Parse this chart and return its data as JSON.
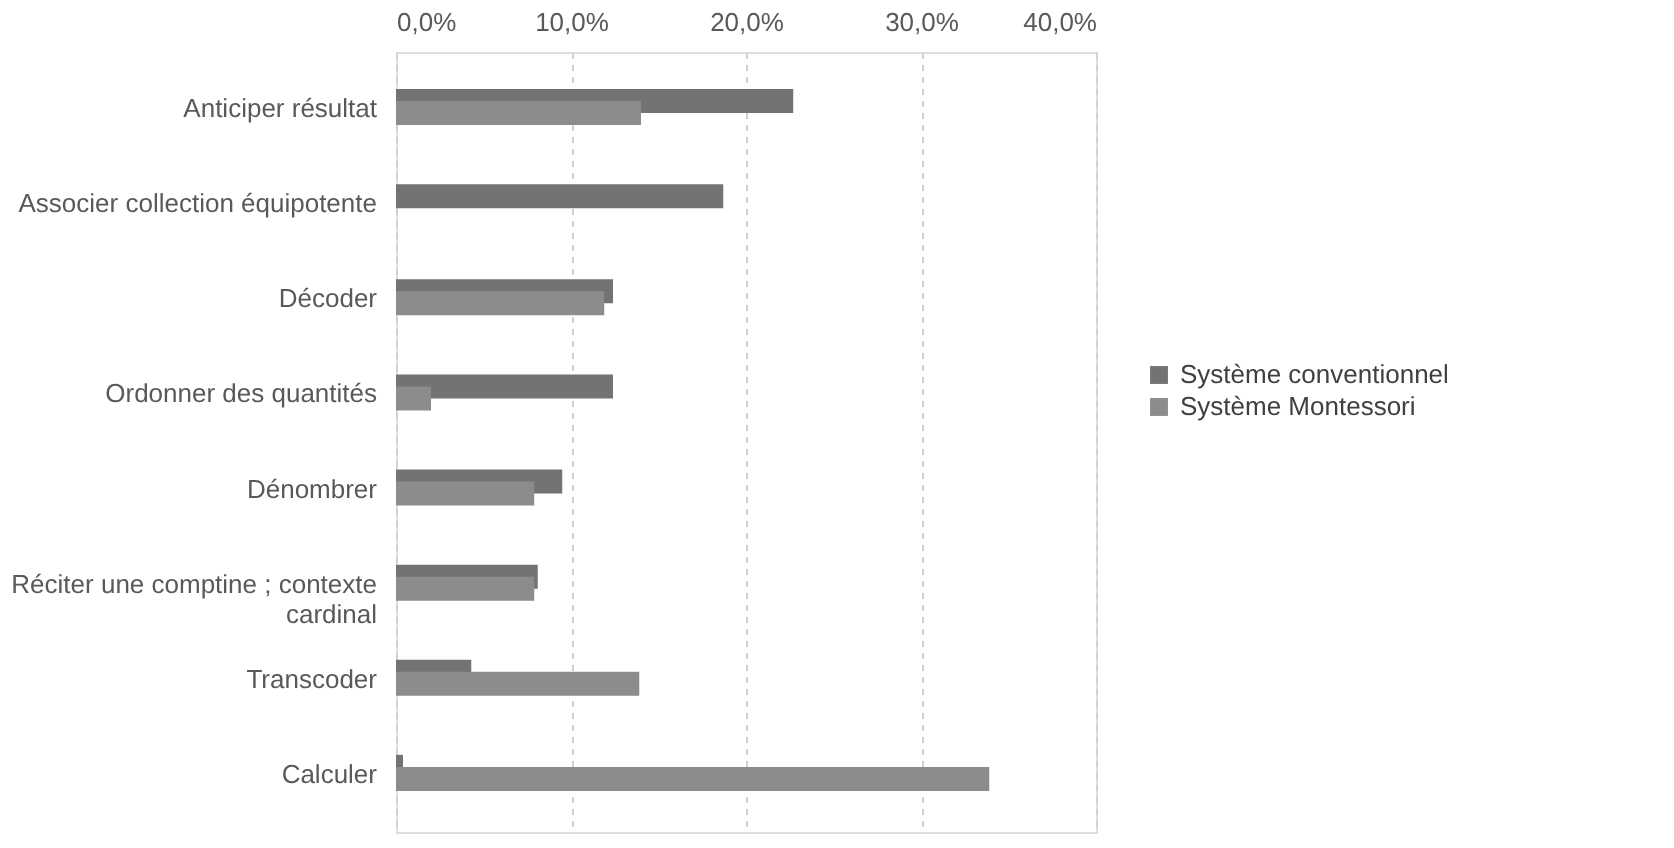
{
  "chart_data": {
    "type": "bar",
    "orientation": "horizontal",
    "categories": [
      "Anticiper résultat",
      "Associer collection équipotente",
      "Décoder",
      "Ordonner des quantités",
      "Dénombrer",
      "Réciter une comptine ; contexte cardinal",
      "Transcoder",
      "Calculer"
    ],
    "series": [
      {
        "name": "Système conventionnel",
        "color": "#737373",
        "values": [
          22.7,
          18.7,
          12.4,
          12.4,
          9.5,
          8.1,
          4.3,
          0.4
        ]
      },
      {
        "name": "Système Montessori",
        "color": "#8c8c8c",
        "values": [
          14.0,
          null,
          11.9,
          2.0,
          7.9,
          7.9,
          13.9,
          33.9
        ]
      }
    ],
    "xlim": [
      0,
      40
    ],
    "xticks": [
      {
        "value": 0,
        "label": "0,0%"
      },
      {
        "value": 10,
        "label": "10,0%"
      },
      {
        "value": 20,
        "label": "20,0%"
      },
      {
        "value": 30,
        "label": "30,0%"
      },
      {
        "value": 40,
        "label": "40,0%"
      }
    ],
    "grid": "x",
    "legend": "right"
  }
}
